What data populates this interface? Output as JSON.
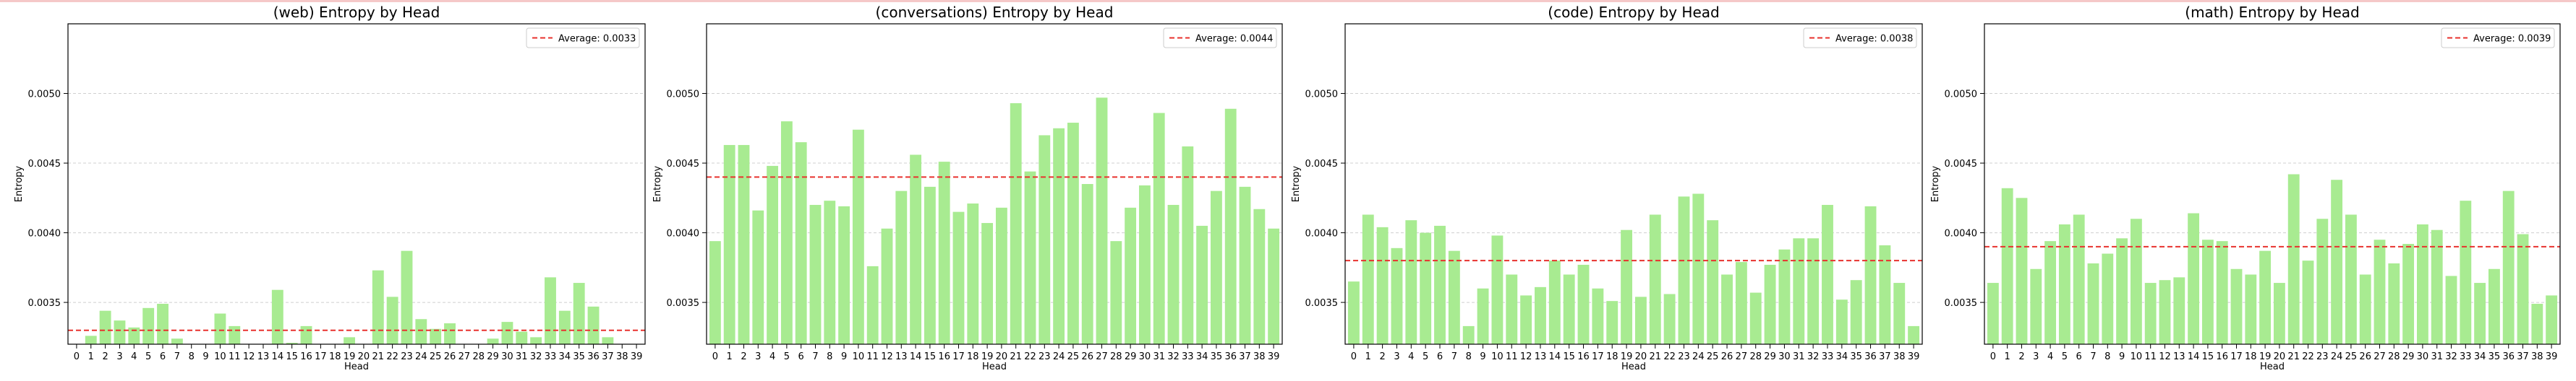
{
  "chart_data": [
    {
      "type": "bar",
      "title": "(web) Entropy by Head",
      "xlabel": "Head",
      "ylabel": "Entropy",
      "ylim": [
        0.0032,
        0.0055
      ],
      "yticks": [
        "0.0035",
        "0.0040",
        "0.0045",
        "0.0050"
      ],
      "categories": [
        "0",
        "1",
        "2",
        "3",
        "4",
        "5",
        "6",
        "7",
        "8",
        "9",
        "10",
        "11",
        "12",
        "13",
        "14",
        "15",
        "16",
        "17",
        "18",
        "19",
        "20",
        "21",
        "22",
        "23",
        "24",
        "25",
        "26",
        "27",
        "28",
        "29",
        "30",
        "31",
        "32",
        "33",
        "34",
        "35",
        "36",
        "37",
        "38",
        "39"
      ],
      "values": [
        0.00317,
        0.00326,
        0.00344,
        0.00337,
        0.00332,
        0.00346,
        0.00349,
        0.00324,
        0.00317,
        0.00317,
        0.00342,
        0.00333,
        0.00317,
        0.00317,
        0.00359,
        0.00321,
        0.00333,
        0.00317,
        0.0032,
        0.00325,
        0.00317,
        0.00373,
        0.00354,
        0.00387,
        0.00338,
        0.00331,
        0.00335,
        0.00317,
        0.00317,
        0.00324,
        0.00336,
        0.00329,
        0.00325,
        0.00368,
        0.00344,
        0.00364,
        0.00347,
        0.00325,
        0.00317,
        0.00317
      ],
      "average_label": "Average: 0.0033",
      "average_value": 0.0033,
      "legend_position": "top-right",
      "grid": "y-dashed"
    },
    {
      "type": "bar",
      "title": "(conversations) Entropy by Head",
      "xlabel": "Head",
      "ylabel": "Entropy",
      "ylim": [
        0.0032,
        0.0055
      ],
      "yticks": [
        "0.0035",
        "0.0040",
        "0.0045",
        "0.0050"
      ],
      "categories": [
        "0",
        "1",
        "2",
        "3",
        "4",
        "5",
        "6",
        "7",
        "8",
        "9",
        "10",
        "11",
        "12",
        "13",
        "14",
        "15",
        "16",
        "17",
        "18",
        "19",
        "20",
        "21",
        "22",
        "23",
        "24",
        "25",
        "26",
        "27",
        "28",
        "29",
        "30",
        "31",
        "32",
        "33",
        "34",
        "35",
        "36",
        "37",
        "38",
        "39"
      ],
      "values": [
        0.00394,
        0.00463,
        0.00463,
        0.00416,
        0.00448,
        0.0048,
        0.00465,
        0.0042,
        0.00423,
        0.00419,
        0.00474,
        0.00376,
        0.00403,
        0.0043,
        0.00456,
        0.00433,
        0.00451,
        0.00415,
        0.00421,
        0.00407,
        0.00418,
        0.00493,
        0.00444,
        0.0047,
        0.00475,
        0.00479,
        0.00435,
        0.00497,
        0.00394,
        0.00418,
        0.00434,
        0.00486,
        0.0042,
        0.00462,
        0.00405,
        0.0043,
        0.00489,
        0.00433,
        0.00417,
        0.00403
      ],
      "average_label": "Average: 0.0044",
      "average_value": 0.0044,
      "legend_position": "top-right",
      "grid": "y-dashed"
    },
    {
      "type": "bar",
      "title": "(code) Entropy by Head",
      "xlabel": "Head",
      "ylabel": "Entropy",
      "ylim": [
        0.0032,
        0.0055
      ],
      "yticks": [
        "0.0035",
        "0.0040",
        "0.0045",
        "0.0050"
      ],
      "categories": [
        "0",
        "1",
        "2",
        "3",
        "4",
        "5",
        "6",
        "7",
        "8",
        "9",
        "10",
        "11",
        "12",
        "13",
        "14",
        "15",
        "16",
        "17",
        "18",
        "19",
        "20",
        "21",
        "22",
        "23",
        "24",
        "25",
        "26",
        "27",
        "28",
        "29",
        "30",
        "31",
        "32",
        "33",
        "34",
        "35",
        "36",
        "37",
        "38",
        "39"
      ],
      "values": [
        0.00365,
        0.00413,
        0.00404,
        0.00389,
        0.00409,
        0.004,
        0.00405,
        0.00387,
        0.00333,
        0.0036,
        0.00398,
        0.0037,
        0.00355,
        0.00361,
        0.0038,
        0.0037,
        0.00377,
        0.0036,
        0.00351,
        0.00402,
        0.00354,
        0.00413,
        0.00356,
        0.00426,
        0.00428,
        0.00409,
        0.0037,
        0.00379,
        0.00357,
        0.00377,
        0.00388,
        0.00396,
        0.00396,
        0.0042,
        0.00352,
        0.00366,
        0.00419,
        0.00391,
        0.00364,
        0.00333
      ],
      "average_label": "Average: 0.0038",
      "average_value": 0.0038,
      "legend_position": "top-right",
      "grid": "y-dashed"
    },
    {
      "type": "bar",
      "title": "(math) Entropy by Head",
      "xlabel": "Head",
      "ylabel": "Entropy",
      "ylim": [
        0.0032,
        0.0055
      ],
      "yticks": [
        "0.0035",
        "0.0040",
        "0.0045",
        "0.0050"
      ],
      "categories": [
        "0",
        "1",
        "2",
        "3",
        "4",
        "5",
        "6",
        "7",
        "8",
        "9",
        "10",
        "11",
        "12",
        "13",
        "14",
        "15",
        "16",
        "17",
        "18",
        "19",
        "20",
        "21",
        "22",
        "23",
        "24",
        "25",
        "26",
        "27",
        "28",
        "29",
        "30",
        "31",
        "32",
        "33",
        "34",
        "35",
        "36",
        "37",
        "38",
        "39"
      ],
      "values": [
        0.00364,
        0.00432,
        0.00425,
        0.00374,
        0.00394,
        0.00406,
        0.00413,
        0.00378,
        0.00385,
        0.00396,
        0.0041,
        0.00364,
        0.00366,
        0.00368,
        0.00414,
        0.00395,
        0.00394,
        0.00374,
        0.0037,
        0.00387,
        0.00364,
        0.00442,
        0.0038,
        0.0041,
        0.00438,
        0.00413,
        0.0037,
        0.00395,
        0.00378,
        0.00392,
        0.00406,
        0.00402,
        0.00369,
        0.00423,
        0.00364,
        0.00374,
        0.0043,
        0.00399,
        0.00349,
        0.00355
      ],
      "average_label": "Average: 0.0039",
      "average_value": 0.0039,
      "legend_position": "top-right",
      "grid": "y-dashed"
    }
  ],
  "colors": {
    "bar": "#a8eb91",
    "average_line": "#e8322e",
    "grid": "#b0b0b0",
    "axes": "#000000"
  }
}
